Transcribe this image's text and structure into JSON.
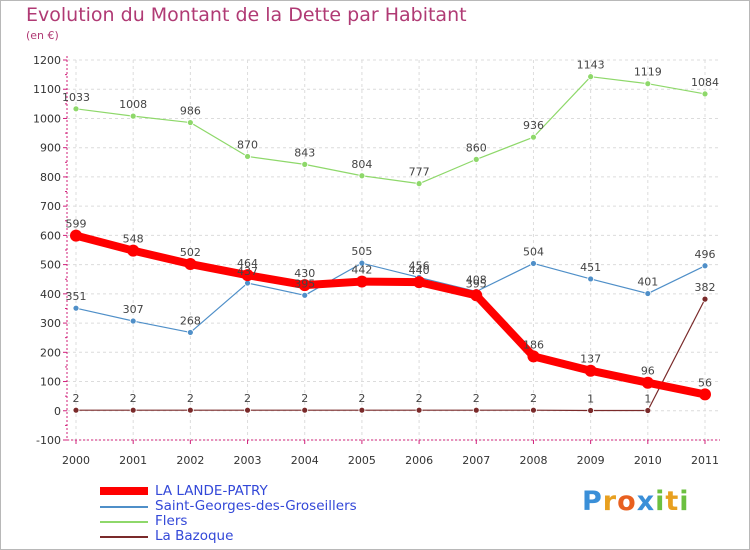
{
  "chart_data": {
    "type": "line",
    "title": "Evolution du Montant de la Dette par Habitant",
    "subtitle": "(en €)",
    "xlabel": "",
    "ylabel": "",
    "ylim": [
      -100,
      1200
    ],
    "yticks": [
      -100,
      0,
      100,
      200,
      300,
      400,
      500,
      600,
      700,
      800,
      900,
      1000,
      1100,
      1200
    ],
    "grid": true,
    "categories": [
      "2000",
      "2001",
      "2002",
      "2003",
      "2004",
      "2005",
      "2006",
      "2007",
      "2008",
      "2009",
      "2010",
      "2011"
    ],
    "series": [
      {
        "name": "LA LANDE-PATRY",
        "color": "#ff0000",
        "values": [
          599,
          548,
          502,
          464,
          430,
          442,
          440,
          395,
          186,
          137,
          96,
          56
        ],
        "labels": [
          "599",
          "548",
          "502",
          "464",
          "430",
          "442",
          "440",
          "395",
          "186",
          "137",
          "96",
          "56"
        ]
      },
      {
        "name": "Saint-Georges-des-Groseillers",
        "color": "#4f8fc8",
        "values": [
          351,
          307,
          268,
          437,
          395,
          505,
          456,
          408,
          504,
          451,
          401,
          496
        ],
        "labels": [
          "351",
          "307",
          "268",
          "437",
          "395",
          "505",
          "456",
          "408",
          "504",
          "451",
          "401",
          "496"
        ]
      },
      {
        "name": "Flers",
        "color": "#8ed86a",
        "values": [
          1033,
          1008,
          986,
          870,
          843,
          804,
          777,
          860,
          936,
          1143,
          1119,
          1084
        ],
        "labels": [
          "1033",
          "1008",
          "986",
          "870",
          "843",
          "804",
          "777",
          "860",
          "936",
          "1143",
          "1119",
          "1084"
        ]
      },
      {
        "name": "La Bazoque",
        "color": "#7a2a2a",
        "values": [
          2,
          2,
          2,
          2,
          2,
          2,
          2,
          2,
          2,
          1,
          1,
          382
        ],
        "labels": [
          "2",
          "2",
          "2",
          "2",
          "2",
          "2",
          "2",
          "2",
          "2",
          "1",
          "1",
          "382"
        ]
      }
    ]
  },
  "legend": {
    "items": [
      {
        "label": "LA LANDE-PATRY"
      },
      {
        "label": "Saint-Georges-des-Groseillers"
      },
      {
        "label": "Flers"
      },
      {
        "label": "La Bazoque"
      }
    ]
  },
  "logo": {
    "text": "Proxiti",
    "letters": [
      "P",
      "r",
      "o",
      "x",
      "i",
      "t",
      "i"
    ],
    "colors": [
      "#3a8fd8",
      "#e8a020",
      "#e86020",
      "#3a8fd8",
      "#6cc040",
      "#e8a020",
      "#6cc040"
    ]
  }
}
